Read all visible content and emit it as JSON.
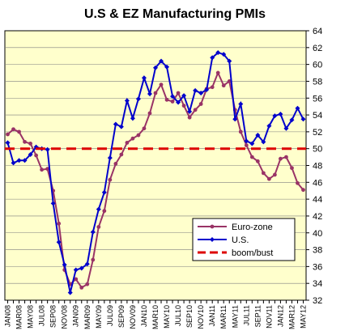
{
  "chart_data": {
    "type": "line",
    "title": "U.S & EZ Manufacturing PMIs",
    "xlabel": "",
    "ylabel": "",
    "ylim": [
      32,
      64
    ],
    "yticks": [
      32,
      34,
      36,
      38,
      40,
      42,
      44,
      46,
      48,
      50,
      52,
      54,
      56,
      58,
      60,
      62,
      64
    ],
    "x_tick_labels": [
      "JAN08",
      "MAR08",
      "MAY08",
      "JUL08",
      "SEP08",
      "NOV08",
      "JAN09",
      "MAR09",
      "MAY09",
      "JUL09",
      "SEP09",
      "NOV09",
      "JAN10",
      "MAR10",
      "MAY10",
      "JUL10",
      "SEP10",
      "NOV10",
      "JAN11",
      "MAR11",
      "MAY11",
      "JUL11",
      "SEP11",
      "NOV11",
      "JAN12",
      "MAR12",
      "MAY12"
    ],
    "x_months": [
      "JAN08",
      "FEB08",
      "MAR08",
      "APR08",
      "MAY08",
      "JUN08",
      "JUL08",
      "AUG08",
      "SEP08",
      "OCT08",
      "NOV08",
      "DEC08",
      "JAN09",
      "FEB09",
      "MAR09",
      "APR09",
      "MAY09",
      "JUN09",
      "JUL09",
      "AUG09",
      "SEP09",
      "OCT09",
      "NOV09",
      "DEC09",
      "JAN10",
      "FEB10",
      "MAR10",
      "APR10",
      "MAY10",
      "JUN10",
      "JUL10",
      "AUG10",
      "SEP10",
      "OCT10",
      "NOV10",
      "DEC10",
      "JAN11",
      "FEB11",
      "MAR11",
      "APR11",
      "MAY11",
      "JUN11",
      "JUL11",
      "AUG11",
      "SEP11",
      "OCT11",
      "NOV11",
      "DEC11",
      "JAN12",
      "FEB12",
      "MAR12",
      "APR12",
      "MAY12"
    ],
    "grid": true,
    "legend_position": "lower-right",
    "background_color": "#ffffcc",
    "series": [
      {
        "name": "Euro-zone",
        "color": "#993366",
        "marker": "circle",
        "values": [
          51.7,
          52.3,
          52.0,
          50.8,
          50.6,
          49.2,
          47.5,
          47.6,
          45.0,
          41.1,
          35.6,
          33.9,
          34.5,
          33.5,
          33.9,
          36.8,
          40.7,
          42.6,
          46.3,
          48.2,
          49.3,
          50.7,
          51.2,
          51.6,
          52.4,
          54.2,
          56.6,
          57.6,
          55.8,
          55.6,
          56.6,
          55.1,
          53.7,
          54.6,
          55.3,
          57.1,
          57.3,
          59.0,
          57.5,
          58.0,
          54.6,
          52.0,
          50.4,
          49.0,
          48.5,
          47.1,
          46.4,
          46.9,
          48.8,
          49.0,
          47.7,
          45.9,
          45.1
        ]
      },
      {
        "name": "U.S.",
        "color": "#0000cc",
        "marker": "diamond",
        "values": [
          50.7,
          48.3,
          48.6,
          48.6,
          49.3,
          50.2,
          50.0,
          49.9,
          43.5,
          38.9,
          36.2,
          32.9,
          35.6,
          35.8,
          36.3,
          40.1,
          42.8,
          44.8,
          48.9,
          52.9,
          52.6,
          55.7,
          53.6,
          55.9,
          58.4,
          56.5,
          59.6,
          60.4,
          59.7,
          56.2,
          55.5,
          56.3,
          54.4,
          56.9,
          56.6,
          57.0,
          60.8,
          61.4,
          61.2,
          60.4,
          53.5,
          55.3,
          50.9,
          50.6,
          51.6,
          50.8,
          52.7,
          53.9,
          54.1,
          52.4,
          53.4,
          54.8,
          53.5
        ]
      },
      {
        "name": "boom/bust",
        "color": "#dd0000",
        "style": "dashed",
        "values": [
          50
        ]
      }
    ]
  }
}
